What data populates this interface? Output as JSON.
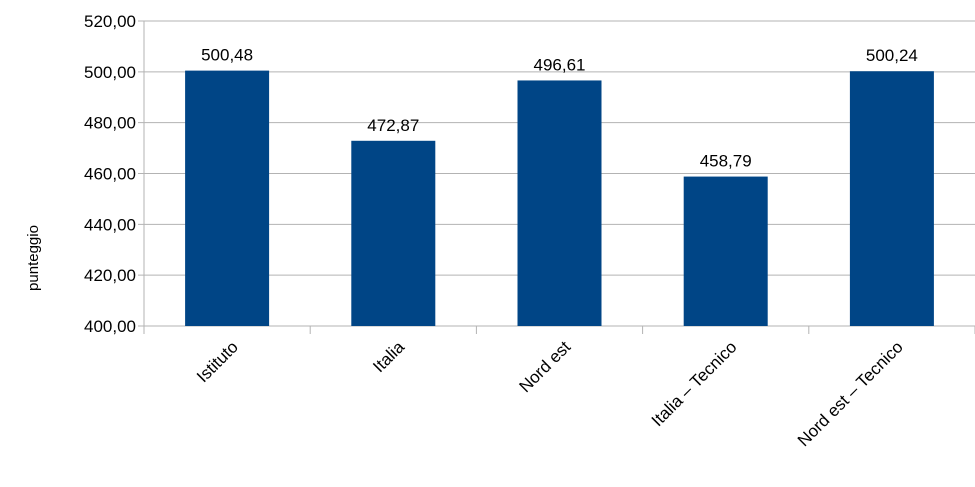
{
  "chart_data": {
    "type": "bar",
    "categories": [
      "Istituto",
      "Italia",
      "Nord est",
      "Italia – Tecnico",
      "Nord est – Tecnico"
    ],
    "values": [
      500.48,
      472.87,
      496.61,
      458.79,
      500.24
    ],
    "data_labels": [
      "500,48",
      "472,87",
      "496,61",
      "458,79",
      "500,24"
    ],
    "ylabel": "punteggio",
    "ylim": [
      400,
      520
    ],
    "yticks": [
      400,
      420,
      440,
      460,
      480,
      500,
      520
    ],
    "ytick_labels": [
      "400,00",
      "420,00",
      "440,00",
      "460,00",
      "480,00",
      "500,00",
      "520,00"
    ],
    "bar_color": "#004586",
    "grid": true,
    "legend": "none"
  }
}
